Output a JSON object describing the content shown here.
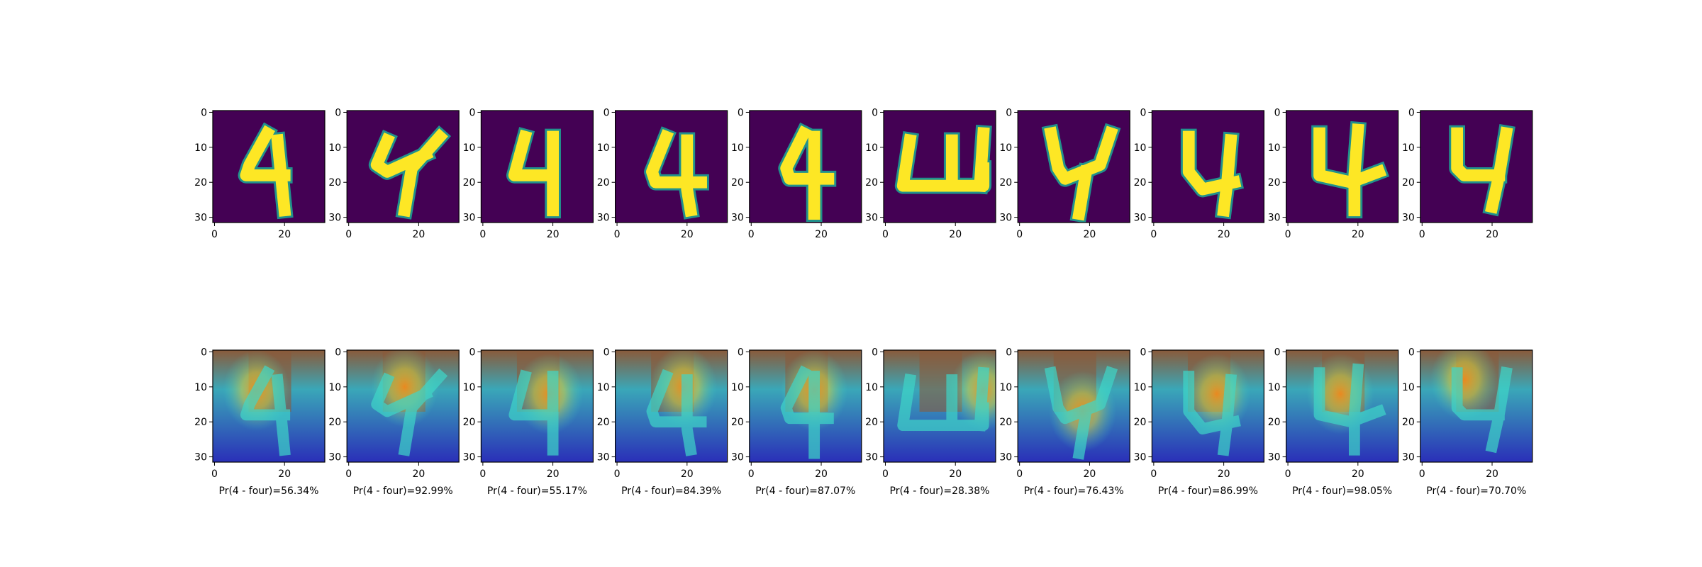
{
  "chart_data": {
    "type": "heatmap",
    "layout": "2 rows x 10 columns of 32x32 images",
    "colormaps": {
      "row_1": "viridis",
      "row_2": "jet heatmap overlay"
    },
    "x_ticks": [
      "0",
      "20"
    ],
    "y_ticks": [
      "0",
      "10",
      "20",
      "30"
    ],
    "x_tick_values": [
      0,
      20
    ],
    "y_tick_values": [
      0,
      10,
      20,
      30
    ],
    "xlim": [
      -0.5,
      31.5
    ],
    "ylim": [
      31.5,
      -0.5
    ],
    "panels": [
      {
        "digit": "4",
        "caption": "Pr(4 - four)=56.34%",
        "probability": 56.34
      },
      {
        "digit": "4",
        "caption": "Pr(4 - four)=92.99%",
        "probability": 92.99
      },
      {
        "digit": "4",
        "caption": "Pr(4 - four)=55.17%",
        "probability": 55.17
      },
      {
        "digit": "4",
        "caption": "Pr(4 - four)=84.39%",
        "probability": 84.39
      },
      {
        "digit": "4",
        "caption": "Pr(4 - four)=87.07%",
        "probability": 87.07
      },
      {
        "digit": "4",
        "caption": "Pr(4 - four)=28.38%",
        "probability": 28.38
      },
      {
        "digit": "4",
        "caption": "Pr(4 - four)=76.43%",
        "probability": 76.43
      },
      {
        "digit": "4",
        "caption": "Pr(4 - four)=86.99%",
        "probability": 86.99
      },
      {
        "digit": "4",
        "caption": "Pr(4 - four)=98.05%",
        "probability": 98.05
      },
      {
        "digit": "4",
        "caption": "Pr(4 - four)=70.70%",
        "probability": 70.7
      }
    ]
  },
  "colors": {
    "digit_background": "#440154",
    "digit_stroke": "#fde725",
    "digit_edge": "#21918c",
    "heat_background": "#2a2fb8",
    "heat_warm": "#8a5a3a",
    "heat_cyan": "#3fd6c8",
    "heat_orange": "#f08a1c"
  }
}
